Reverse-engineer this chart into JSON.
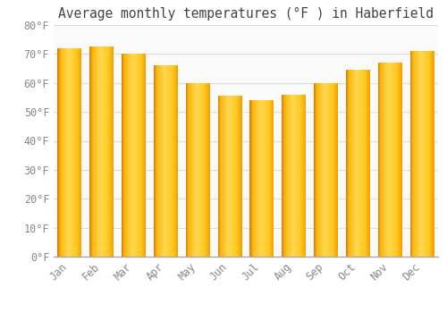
{
  "months": [
    "Jan",
    "Feb",
    "Mar",
    "Apr",
    "May",
    "Jun",
    "Jul",
    "Aug",
    "Sep",
    "Oct",
    "Nov",
    "Dec"
  ],
  "values": [
    72,
    72.5,
    70,
    66,
    60,
    55.5,
    54,
    56,
    60,
    64.5,
    67,
    71
  ],
  "title": "Average monthly temperatures (°F ) in Haberfield",
  "ylim": [
    0,
    80
  ],
  "yticks": [
    0,
    10,
    20,
    30,
    40,
    50,
    60,
    70,
    80
  ],
  "ytick_labels": [
    "0°F",
    "10°F",
    "20°F",
    "30°F",
    "40°F",
    "50°F",
    "60°F",
    "70°F",
    "80°F"
  ],
  "bar_color_dark": "#F0920A",
  "bar_color_light": "#FFD84A",
  "bar_color_mid": "#FFBE20",
  "background_color": "#FFFFFF",
  "plot_bg_color": "#FAFAFA",
  "grid_color": "#DDDDDD",
  "title_fontsize": 10.5,
  "tick_fontsize": 8.5,
  "tick_color": "#888888",
  "bar_width": 0.75
}
